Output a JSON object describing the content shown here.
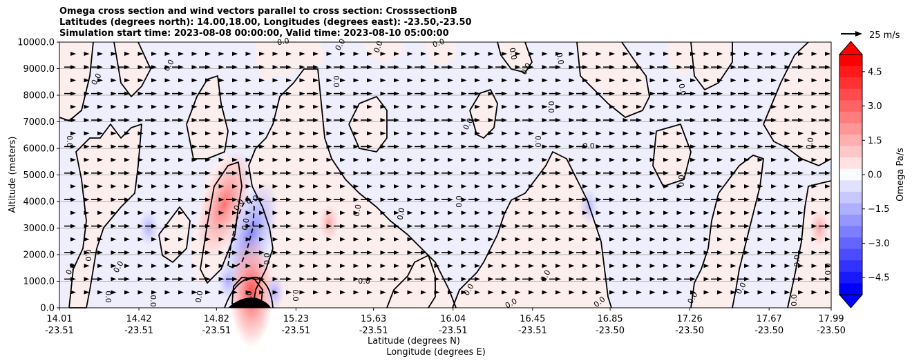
{
  "chart_data": {
    "type": "heatmap",
    "title": {
      "line1": "Omega cross section and wind vectors parallel to cross section: CrosssectionB",
      "line2": "Latitudes (degrees north): 14.00,18.00, Longitudes (degrees east): -23.50,-23.50",
      "line3": "Simulation start time: 2023-08-08 00:00:00, Valid time: 2023-08-10 05:00:00"
    },
    "ylabel": "Altitude (meters)",
    "xlabel_lat": "Latitude (degrees N)",
    "xlabel_lon": "Longitude (degrees E)",
    "ylim": [
      0,
      10000
    ],
    "yticks": [
      "0.0",
      "1000.0",
      "2000.0",
      "3000.0",
      "4000.0",
      "5000.0",
      "6000.0",
      "7000.0",
      "8000.0",
      "9000.0",
      "10000.0"
    ],
    "xlim": [
      14.01,
      17.99
    ],
    "xticks": [
      {
        "lat": "14.01",
        "lon": "-23.51"
      },
      {
        "lat": "14.42",
        "lon": "-23.51"
      },
      {
        "lat": "14.82",
        "lon": "-23.51"
      },
      {
        "lat": "15.23",
        "lon": "-23.51"
      },
      {
        "lat": "15.63",
        "lon": "-23.51"
      },
      {
        "lat": "16.04",
        "lon": "-23.51"
      },
      {
        "lat": "16.45",
        "lon": "-23.51"
      },
      {
        "lat": "16.85",
        "lon": "-23.50"
      },
      {
        "lat": "17.26",
        "lon": "-23.50"
      },
      {
        "lat": "17.67",
        "lon": "-23.50"
      },
      {
        "lat": "17.99",
        "lon": "-23.50"
      }
    ],
    "colorbar": {
      "label": "Omega Pa/s",
      "range": [
        -5.25,
        5.25
      ],
      "ticks": [
        "4.5",
        "3.0",
        "1.5",
        "0.0",
        "−1.5",
        "−3.0",
        "−4.5"
      ],
      "extend": "both"
    },
    "quiver_key": "25 m/s",
    "contour_label": "0.0",
    "grid": true,
    "features": [
      {
        "kind": "positive",
        "lat": 14.86,
        "alt": 3900,
        "peak": 3.0
      },
      {
        "kind": "negative",
        "lat": 15.0,
        "alt": 2800,
        "peak": -3.0
      },
      {
        "kind": "positive",
        "lat": 15.0,
        "alt": 600,
        "peak": 4.5
      },
      {
        "kind": "negative",
        "lat": 14.88,
        "alt": 1000,
        "peak": -1.2
      },
      {
        "kind": "negative",
        "lat": 15.12,
        "alt": 600,
        "peak": -1.2
      },
      {
        "kind": "positive",
        "lat": 15.4,
        "alt": 3200,
        "peak": 0.8
      },
      {
        "kind": "negative",
        "lat": 14.47,
        "alt": 3000,
        "peak": -0.8
      },
      {
        "kind": "negative",
        "lat": 16.74,
        "alt": 3800,
        "peak": -0.6
      },
      {
        "kind": "positive",
        "lat": 17.93,
        "alt": 3000,
        "peak": 0.8
      }
    ],
    "colors": {
      "positive_light": "#fdeeee",
      "negative_light": "#eeeefd",
      "contour": "#000000",
      "grid": "#b0b0b0"
    }
  }
}
